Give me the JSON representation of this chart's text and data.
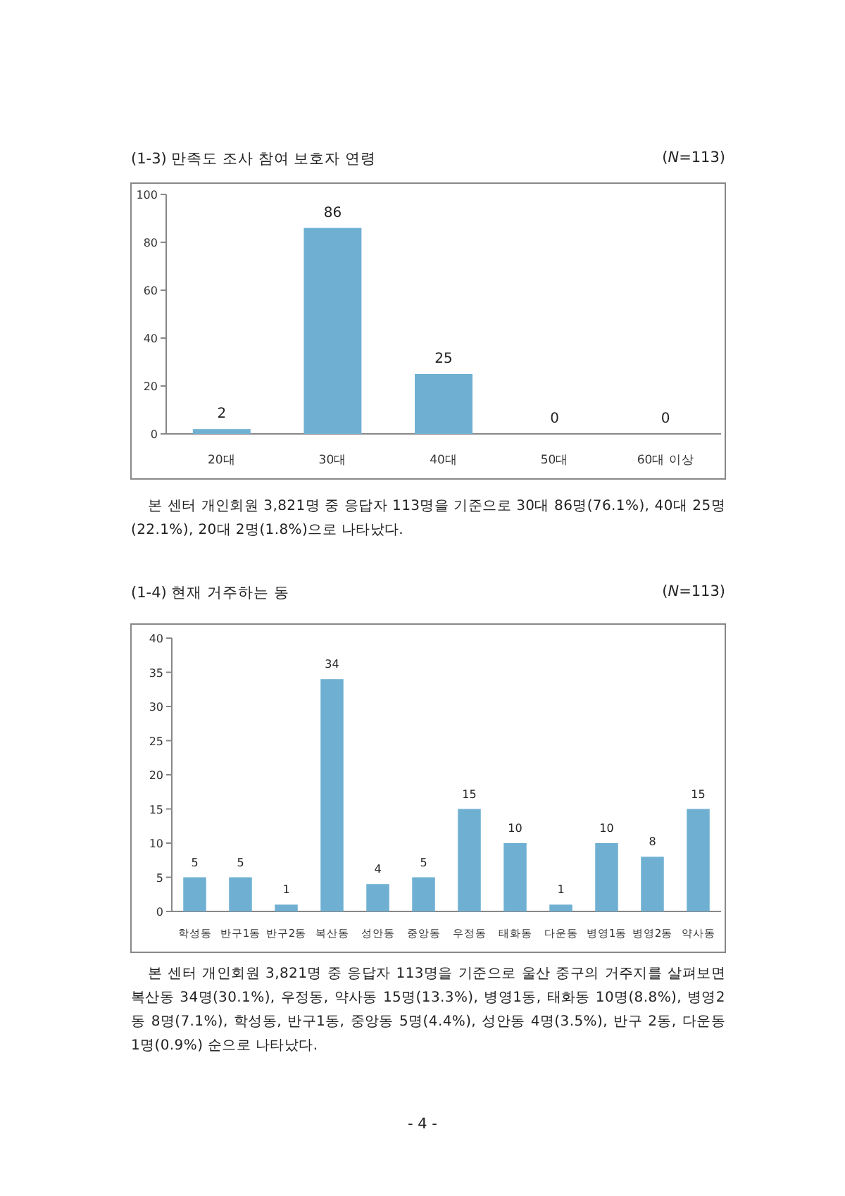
{
  "chart_data": [
    {
      "type": "bar",
      "title": "(1-3) 만족도 조사 참여 보호자 연령",
      "subtitle": "(N=113)",
      "categories": [
        "20대",
        "30대",
        "40대",
        "50대",
        "60대 이상"
      ],
      "values": [
        2,
        86,
        25,
        0,
        0
      ],
      "color": "#6fb0d2",
      "ylim": [
        0,
        100
      ],
      "yticks": [
        0,
        20,
        40,
        60,
        80,
        100
      ],
      "data_labels": true,
      "grid": false,
      "annotations": [
        "본 센터 개인회원 3,821명 중 응답자 113명을 기준으로 30대 86명(76.1%), 40대 25명(22.1%), 20대 2명(1.8%)으로 나타났다."
      ]
    },
    {
      "type": "bar",
      "title": "(1-4) 현재 거주하는 동",
      "subtitle": "(N=113)",
      "categories": [
        "학성동",
        "반구1동",
        "반구2동",
        "복산동",
        "성안동",
        "중앙동",
        "우정동",
        "태화동",
        "다운동",
        "병영1동",
        "병영2동",
        "약사동"
      ],
      "values": [
        5,
        5,
        1,
        34,
        4,
        5,
        15,
        10,
        1,
        10,
        8,
        15
      ],
      "color": "#6fb0d2",
      "ylim": [
        0,
        40
      ],
      "yticks": [
        0,
        5,
        10,
        15,
        20,
        25,
        30,
        35,
        40
      ],
      "data_labels": true,
      "grid": false,
      "annotations": [
        "본 센터 개인회원 3,821명 중 응답자 113명을 기준으로 울산 중구의 거주지를 살펴보면 복산동 34명(30.1%), 우정동, 약사동 15명(13.3%), 병영1동, 태화동 10명(8.8%), 병영2동 8명(7.1%), 학성동, 반구1동, 중앙동 5명(4.4%), 성안동 4명(3.5%), 반구 2동, 다운동 1명(0.9%) 순으로 나타났다.",
        "- 4 -"
      ]
    }
  ]
}
